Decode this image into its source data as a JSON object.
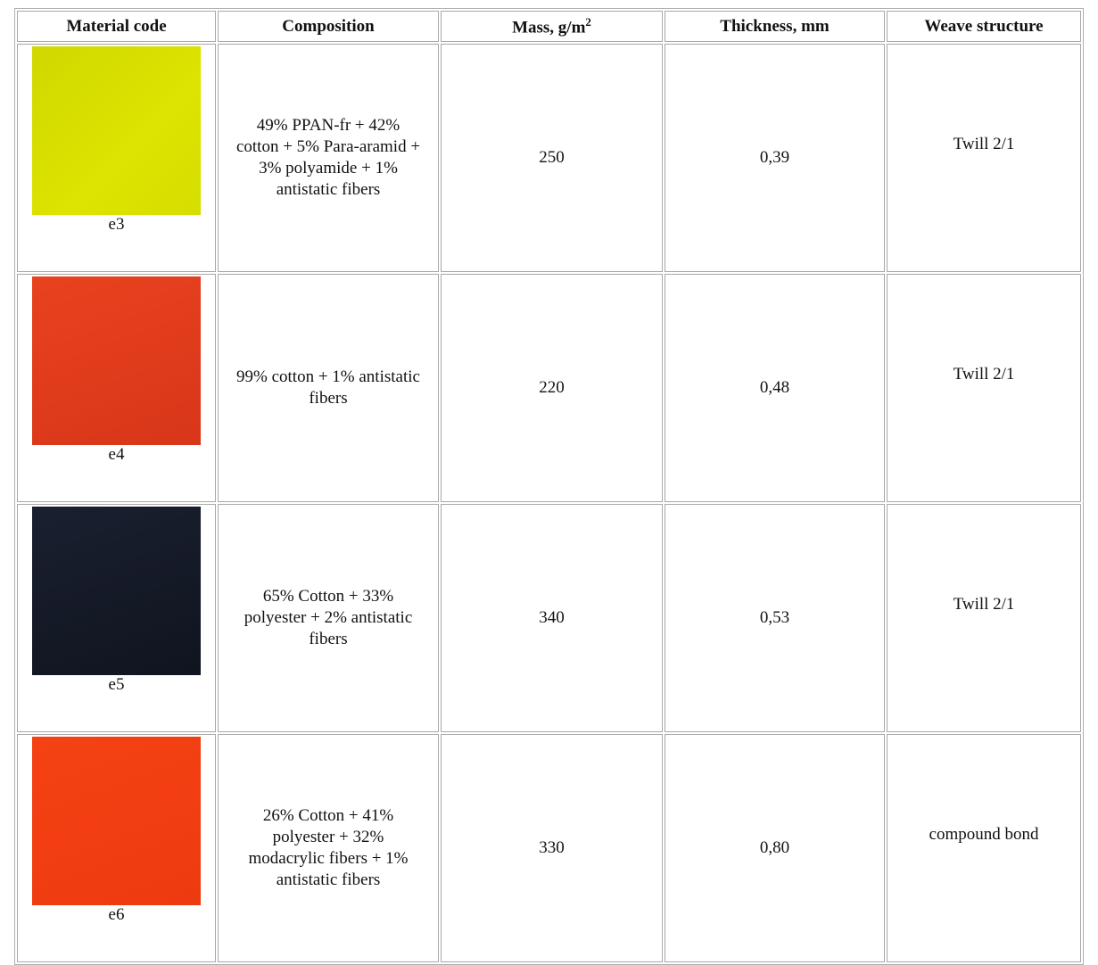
{
  "table": {
    "header": [
      "Material code",
      "Composition",
      {
        "text": "Mass, g/m",
        "sup": "2"
      },
      "Thickness, mm",
      "Weave structure"
    ],
    "rows": [
      {
        "code": "e3",
        "composition": "49% PPAN-fr + 42% cotton + 5% Para-aramid + 3% polyamide + 1% antistatic fibers",
        "mass": 250,
        "thickness": "0,39",
        "weave": "Twill 2/1"
      },
      {
        "code": "e4",
        "composition": "99% cotton + 1% antistatic fibers",
        "mass": 220,
        "thickness": "0,48",
        "weave": "Twill 2/1"
      },
      {
        "code": "e5",
        "composition": "65% Cotton + 33% polyester + 2% antistatic fibers",
        "mass": 340,
        "thickness": "0,53",
        "weave": "Twill 2/1"
      },
      {
        "code": "e6",
        "composition": "26% Cotton + 41% polyester + 32% modacrylic fibers + 1% antistatic fibers",
        "mass": 330,
        "thickness": "0,80",
        "weave": "compound bond"
      }
    ]
  }
}
